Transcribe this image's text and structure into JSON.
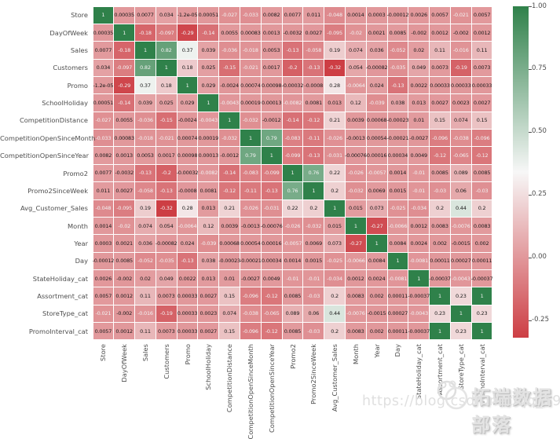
{
  "chart_data": {
    "type": "heatmap",
    "title": "",
    "xlabel": "",
    "ylabel": "",
    "grid": "white cell separators",
    "legend_position": "right-colorbar",
    "categories": [
      "Store",
      "DayOfWeek",
      "Sales",
      "Customers",
      "Promo",
      "SchoolHoliday",
      "CompetitionDistance",
      "CompetitionOpenSinceMonth",
      "CompetitionOpenSinceYear",
      "Promo2",
      "Promo2SinceWeek",
      "Avg_Customer_Sales",
      "Month",
      "Year",
      "Day",
      "StateHoliday_cat",
      "Assortment_cat",
      "StoreType_cat",
      "PromoInterval_cat"
    ],
    "matrix": [
      [
        "1",
        "0.00035",
        "0.0077",
        "0.034",
        "-1.2e-05",
        "0.00051",
        "-0.027",
        "-0.033",
        "0.0082",
        "0.0077",
        "0.011",
        "-0.048",
        "0.0014",
        "0.0003",
        "-0.00012",
        "0.0026",
        "0.0057",
        "-0.021",
        "0.0057"
      ],
      [
        "0.00035",
        "1",
        "-0.18",
        "-0.097",
        "-0.29",
        "-0.14",
        "0.0055",
        "0.00083",
        "0.0013",
        "-0.0032",
        "0.0027",
        "-0.095",
        "-0.02",
        "0.0021",
        "0.0085",
        "-0.002",
        "0.0012",
        "-0.002",
        "0.0012"
      ],
      [
        "0.0077",
        "-0.18",
        "1",
        "0.82",
        "0.37",
        "0.039",
        "-0.036",
        "-0.018",
        "0.0053",
        "-0.13",
        "-0.058",
        "0.19",
        "0.074",
        "0.036",
        "-0.052",
        "0.02",
        "0.11",
        "-0.016",
        "0.11"
      ],
      [
        "0.034",
        "-0.097",
        "0.82",
        "1",
        "0.18",
        "0.025",
        "-0.15",
        "-0.021",
        "0.0017",
        "-0.2",
        "-0.13",
        "-0.32",
        "0.054",
        "-0.00082",
        "-0.035",
        "0.049",
        "0.0073",
        "-0.19",
        "0.0073"
      ],
      [
        "-1.2e-05",
        "-0.29",
        "0.37",
        "0.18",
        "1",
        "0.029",
        "-0.0024",
        "0.00074",
        "0.00098",
        "-0.00032",
        "-0.0008",
        "0.28",
        "-0.0064",
        "0.024",
        "-0.13",
        "0.0022",
        "0.00033",
        "0.00033",
        "0.00033"
      ],
      [
        "0.00051",
        "-0.14",
        "0.039",
        "0.025",
        "0.029",
        "1",
        "-0.0043",
        "0.00019",
        "0.00013",
        "-0.0082",
        "0.0081",
        "0.013",
        "0.12",
        "-0.039",
        "0.038",
        "0.013",
        "0.0027",
        "0.0023",
        "0.0027"
      ],
      [
        "-0.027",
        "0.0055",
        "-0.036",
        "-0.15",
        "-0.0024",
        "-0.0043",
        "1",
        "-0.032",
        "-0.0012",
        "-0.14",
        "-0.12",
        "0.21",
        "0.0039",
        "0.00068",
        "-0.00023",
        "0.01",
        "0.15",
        "0.074",
        "0.15"
      ],
      [
        "-0.033",
        "0.00083",
        "-0.018",
        "-0.021",
        "0.00074",
        "0.00019",
        "-0.032",
        "1",
        "0.79",
        "-0.083",
        "-0.11",
        "-0.026",
        "-0.0013",
        "0.00054",
        "-0.00021",
        "-0.0027",
        "-0.096",
        "-0.038",
        "-0.096"
      ],
      [
        "0.0082",
        "0.0013",
        "0.0053",
        "0.0017",
        "0.00098",
        "0.00013",
        "-0.0012",
        "0.79",
        "1",
        "-0.099",
        "-0.13",
        "-0.031",
        "-0.00076",
        "0.00016",
        "0.00034",
        "0.0049",
        "-0.12",
        "-0.065",
        "-0.12"
      ],
      [
        "0.0077",
        "-0.0032",
        "-0.13",
        "-0.2",
        "-0.00032",
        "-0.0082",
        "-0.14",
        "-0.083",
        "-0.099",
        "1",
        "0.76",
        "0.22",
        "-0.026",
        "-0.0057",
        "0.0014",
        "-0.01",
        "0.0085",
        "0.089",
        "0.0085"
      ],
      [
        "0.011",
        "0.0027",
        "-0.058",
        "-0.13",
        "-0.0008",
        "0.0081",
        "-0.12",
        "-0.11",
        "-0.13",
        "0.76",
        "1",
        "0.2",
        "-0.032",
        "0.0069",
        "0.0015",
        "-0.01",
        "-0.03",
        "0.06",
        "-0.03"
      ],
      [
        "-0.048",
        "-0.095",
        "0.19",
        "-0.32",
        "0.28",
        "0.013",
        "0.21",
        "-0.026",
        "-0.031",
        "0.22",
        "0.2",
        "1",
        "0.015",
        "0.073",
        "-0.025",
        "-0.034",
        "0.2",
        "0.44",
        "0.2"
      ],
      [
        "0.0014",
        "-0.02",
        "0.074",
        "0.054",
        "-0.0064",
        "0.12",
        "0.0039",
        "-0.0013",
        "-0.00076",
        "-0.026",
        "-0.032",
        "0.015",
        "1",
        "-0.27",
        "-0.0066",
        "0.0012",
        "0.0083",
        "-0.0076",
        "0.0083"
      ],
      [
        "0.0003",
        "0.0021",
        "0.036",
        "-0.00082",
        "0.024",
        "-0.039",
        "0.00068",
        "0.00054",
        "0.00016",
        "-0.0057",
        "0.0069",
        "0.073",
        "-0.27",
        "1",
        "0.0084",
        "0.0024",
        "0.002",
        "-0.0015",
        "0.002"
      ],
      [
        "-0.00012",
        "0.0085",
        "-0.052",
        "-0.035",
        "-0.13",
        "0.038",
        "-0.00023",
        "-0.00021",
        "0.00034",
        "0.0014",
        "0.0015",
        "-0.025",
        "-0.0066",
        "0.0084",
        "1",
        "-0.0081",
        "0.00011",
        "0.00027",
        "0.00011"
      ],
      [
        "0.0026",
        "-0.002",
        "0.02",
        "0.049",
        "0.0022",
        "0.013",
        "0.01",
        "-0.0027",
        "0.0049",
        "-0.01",
        "-0.01",
        "-0.034",
        "0.0012",
        "0.0024",
        "-0.0081",
        "1",
        "-0.00037",
        "-0.0043",
        "-0.00037"
      ],
      [
        "0.0057",
        "0.0012",
        "0.11",
        "0.0073",
        "0.00033",
        "0.0027",
        "0.15",
        "-0.096",
        "-0.12",
        "0.0085",
        "-0.03",
        "0.2",
        "0.0083",
        "0.002",
        "0.00011",
        "-0.00037",
        "1",
        "0.23",
        "1"
      ],
      [
        "-0.021",
        "-0.002",
        "-0.016",
        "-0.19",
        "0.00033",
        "0.0023",
        "0.074",
        "-0.038",
        "-0.065",
        "0.089",
        "0.06",
        "0.44",
        "-0.0076",
        "-0.0015",
        "0.00027",
        "-0.0043",
        "0.23",
        "1",
        "0.23"
      ],
      [
        "0.0057",
        "0.0012",
        "0.11",
        "0.0073",
        "0.00033",
        "0.0027",
        "0.15",
        "-0.096",
        "-0.12",
        "0.0085",
        "-0.03",
        "0.2",
        "0.0083",
        "0.002",
        "0.00011",
        "-0.00037",
        "1",
        "0.23",
        "1"
      ]
    ],
    "colorbar": {
      "vmin": -0.32,
      "vmax": 1.0,
      "color_high": "#2f814a",
      "color_mid": "#f7f7f7",
      "color_low": "#cd3e44",
      "ticks": [
        {
          "label": "1.00",
          "value": 1.0
        },
        {
          "label": "0.75",
          "value": 0.75
        },
        {
          "label": "0.50",
          "value": 0.5
        },
        {
          "label": "0.25",
          "value": 0.25
        },
        {
          "label": "0.00",
          "value": 0.0
        },
        {
          "label": "-0.25",
          "value": -0.25
        }
      ]
    }
  },
  "watermark": {
    "brand_text": "拓端数据部落",
    "url_text": "https://blog.csdn.net/qq_19600291",
    "logo": "panda-doodle-icon"
  }
}
